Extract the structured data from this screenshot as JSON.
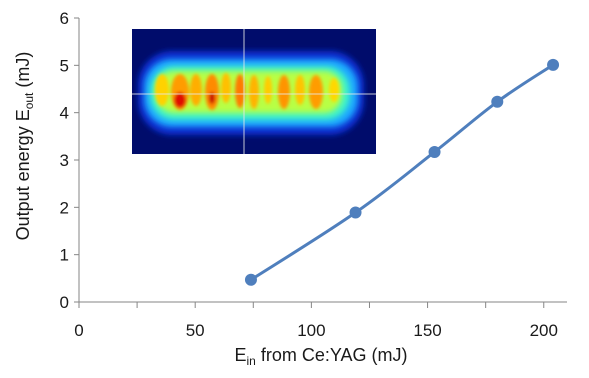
{
  "chart_data": {
    "type": "scatter",
    "title": "",
    "xlabel": {
      "main": "E",
      "sub": "in",
      "rest": " from Ce:YAG (mJ)"
    },
    "ylabel": {
      "main": "Output energy E",
      "sub": "out",
      "rest": "  (mJ)"
    },
    "xlim": [
      0,
      210
    ],
    "ylim": [
      0,
      6
    ],
    "xticks": [
      0,
      50,
      100,
      150,
      200
    ],
    "xminor": [
      25,
      75,
      125,
      175
    ],
    "yticks": [
      0,
      1,
      2,
      3,
      4,
      5,
      6
    ],
    "xtick_labels": [
      "0",
      "50",
      "100",
      "150",
      "200"
    ],
    "ytick_labels": [
      "0",
      "1",
      "2",
      "3",
      "4",
      "5",
      "6"
    ],
    "grid": false,
    "legend": "none",
    "series": [
      {
        "x": [
          74,
          119,
          153,
          180,
          204
        ],
        "y": [
          0.47,
          1.89,
          3.17,
          4.23,
          5.01
        ]
      }
    ],
    "line_color": "#4f7fbd",
    "marker_color": "#4f7fbd",
    "inset": {
      "kind": "beam-profile-heatmap",
      "colormap": "jet"
    }
  }
}
